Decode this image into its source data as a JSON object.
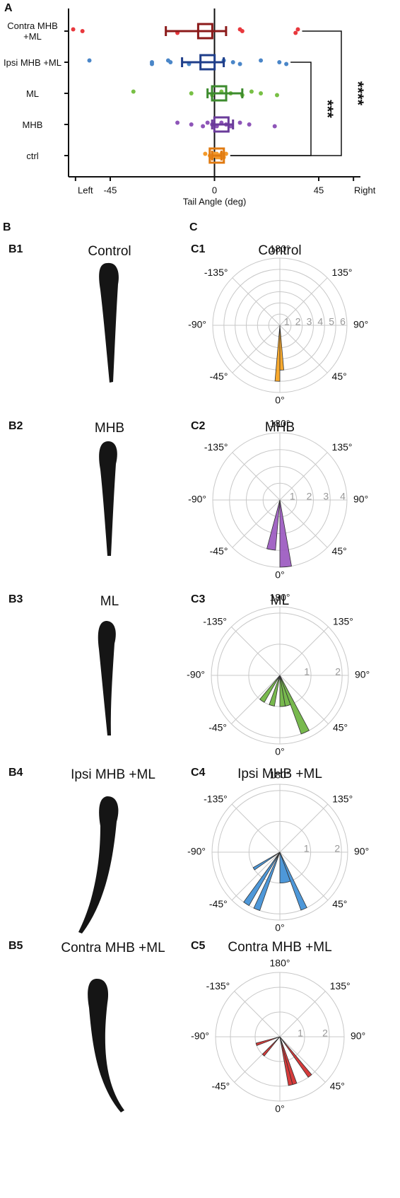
{
  "panel_labels": [
    "A",
    "B",
    "C"
  ],
  "fish_panels": [
    {
      "label": "B1",
      "title": "Control"
    },
    {
      "label": "B2",
      "title": "MHB"
    },
    {
      "label": "B3",
      "title": "ML"
    },
    {
      "label": "B4",
      "title": "Ipsi MHB +ML"
    },
    {
      "label": "B5",
      "title": "Contra MHB +ML"
    }
  ],
  "chart_data": [
    {
      "type": "dot-plot",
      "categories": [
        "Contra MHB +ML",
        "Ipsi MHB +ML",
        "ML",
        "MHB",
        "ctrl"
      ],
      "xlabel": "Tail Angle (deg)",
      "xlim": [
        -63,
        63
      ],
      "xticks": [
        {
          "value": -60,
          "label": "Left"
        },
        -45,
        0,
        45,
        {
          "value": 60,
          "label": "Right"
        }
      ],
      "groups": [
        {
          "points": [
            -61,
            -57,
            -16,
            11,
            12,
            35,
            36
          ],
          "mean": -4,
          "ci": [
            -21,
            5
          ],
          "point_color": "#e8383d",
          "box_color": "#8b1a1a"
        },
        {
          "points": [
            -54,
            -27,
            -27,
            -20,
            -19,
            -11,
            4,
            8,
            11,
            20,
            28,
            31
          ],
          "mean": -3,
          "ci": [
            -14,
            4
          ],
          "point_color": "#4a86c8",
          "box_color": "#1f3e8a"
        },
        {
          "points": [
            -35,
            -10,
            -1,
            3,
            7,
            12,
            16,
            20,
            27
          ],
          "mean": 2,
          "ci": [
            -3,
            12
          ],
          "point_color": "#78c045",
          "box_color": "#3d8b2e"
        },
        {
          "points": [
            -16,
            -10,
            -5,
            -3,
            -1,
            1,
            3,
            5,
            7,
            11,
            15,
            26
          ],
          "mean": 3,
          "ci": [
            -1,
            8
          ],
          "point_color": "#8e55b8",
          "box_color": "#6a3b9a"
        },
        {
          "points": [
            -4,
            -2,
            -1,
            0,
            0,
            1,
            1,
            2,
            2,
            3,
            3,
            4,
            5
          ],
          "mean": 1,
          "ci": [
            -1,
            3
          ],
          "point_color": "#f39a2c",
          "box_color": "#e07a10"
        }
      ],
      "significance": [
        {
          "from": 1,
          "to": 4,
          "label": "***"
        },
        {
          "from": 0,
          "to": 4,
          "label": "****"
        }
      ]
    },
    {
      "type": "polar-histogram",
      "panel": "C1",
      "title": "Control",
      "color": "#f7a21b",
      "rlim": [
        0,
        6
      ],
      "rticks": [
        1,
        2,
        3,
        4,
        5,
        6
      ],
      "thetaticks": [
        {
          "value": 180,
          "label": "180°"
        },
        {
          "value": 135,
          "label": "135°"
        },
        {
          "value": 90,
          "label": "90°"
        },
        {
          "value": 45,
          "label": "45°"
        },
        {
          "value": 0,
          "label": "0°"
        },
        {
          "value": -45,
          "label": "-45°"
        },
        {
          "value": -90,
          "label": "-90°"
        },
        {
          "value": -135,
          "label": "-135°"
        }
      ],
      "sectors": [
        {
          "from": -5,
          "to": 0,
          "value": 5
        },
        {
          "from": 0,
          "to": 5,
          "value": 4
        }
      ]
    },
    {
      "type": "polar-histogram",
      "panel": "C2",
      "title": "MHB",
      "color": "#9b59c0",
      "rlim": [
        0,
        4
      ],
      "rticks": [
        1,
        2,
        3,
        4
      ],
      "thetaticks": [
        {
          "value": 180,
          "label": "180°"
        },
        {
          "value": 135,
          "label": "135°"
        },
        {
          "value": 90,
          "label": "90°"
        },
        {
          "value": 45,
          "label": "45°"
        },
        {
          "value": 0,
          "label": "0°"
        },
        {
          "value": -45,
          "label": "-45°"
        },
        {
          "value": -90,
          "label": "-90°"
        },
        {
          "value": -135,
          "label": "-135°"
        }
      ],
      "sectors": [
        {
          "from": -15,
          "to": -5,
          "value": 3
        },
        {
          "from": 0,
          "to": 10,
          "value": 4
        }
      ]
    },
    {
      "type": "polar-histogram",
      "panel": "C3",
      "title": "ML",
      "color": "#6cb33f",
      "rlim": [
        0,
        2.2
      ],
      "rticks": [
        1,
        2
      ],
      "thetaticks": [
        {
          "value": 180,
          "label": "180°"
        },
        {
          "value": 135,
          "label": "135°"
        },
        {
          "value": 90,
          "label": "90°"
        },
        {
          "value": 45,
          "label": "45°"
        },
        {
          "value": 0,
          "label": "0°"
        },
        {
          "value": -45,
          "label": "-45°"
        },
        {
          "value": -90,
          "label": "-90°"
        },
        {
          "value": -135,
          "label": "-135°"
        }
      ],
      "sectors": [
        {
          "from": -40,
          "to": -30,
          "value": 1
        },
        {
          "from": -20,
          "to": -10,
          "value": 1
        },
        {
          "from": 0,
          "to": 10,
          "value": 1
        },
        {
          "from": 10,
          "to": 20,
          "value": 1
        },
        {
          "from": 20,
          "to": 28,
          "value": 2
        }
      ]
    },
    {
      "type": "polar-histogram",
      "panel": "C4",
      "title": "Ipsi MHB +ML",
      "color": "#3f8fd6",
      "rlim": [
        0,
        2.2
      ],
      "rticks": [
        1,
        2
      ],
      "thetaticks": [
        {
          "value": 180,
          "label": "180°"
        },
        {
          "value": 135,
          "label": "135°"
        },
        {
          "value": 90,
          "label": "90°"
        },
        {
          "value": 45,
          "label": "45°"
        },
        {
          "value": 0,
          "label": "0°"
        },
        {
          "value": -45,
          "label": "-45°"
        },
        {
          "value": -90,
          "label": "-90°"
        },
        {
          "value": -135,
          "label": "-135°"
        }
      ],
      "sectors": [
        {
          "from": -60,
          "to": -55,
          "value": 1
        },
        {
          "from": -36,
          "to": -30,
          "value": 2
        },
        {
          "from": -25,
          "to": -19,
          "value": 2
        },
        {
          "from": 0,
          "to": 20,
          "value": 1
        },
        {
          "from": 20,
          "to": 26,
          "value": 2
        }
      ]
    },
    {
      "type": "polar-histogram",
      "panel": "C5",
      "title": "Contra MHB +ML",
      "color": "#d42a2a",
      "rlim": [
        0,
        2.6
      ],
      "rticks": [
        1,
        2
      ],
      "thetaticks": [
        {
          "value": 180,
          "label": "180°"
        },
        {
          "value": 135,
          "label": "135°"
        },
        {
          "value": 90,
          "label": "90°"
        },
        {
          "value": 45,
          "label": "45°"
        },
        {
          "value": 0,
          "label": "0°"
        },
        {
          "value": -45,
          "label": "-45°"
        },
        {
          "value": -90,
          "label": "-90°"
        },
        {
          "value": -135,
          "label": "-135°"
        }
      ],
      "sectors": [
        {
          "from": -75,
          "to": -69,
          "value": 1
        },
        {
          "from": -45,
          "to": -39,
          "value": 1
        },
        {
          "from": 10,
          "to": 15,
          "value": 2
        },
        {
          "from": 15,
          "to": 20,
          "value": 2
        },
        {
          "from": 35,
          "to": 40,
          "value": 2
        }
      ]
    }
  ]
}
